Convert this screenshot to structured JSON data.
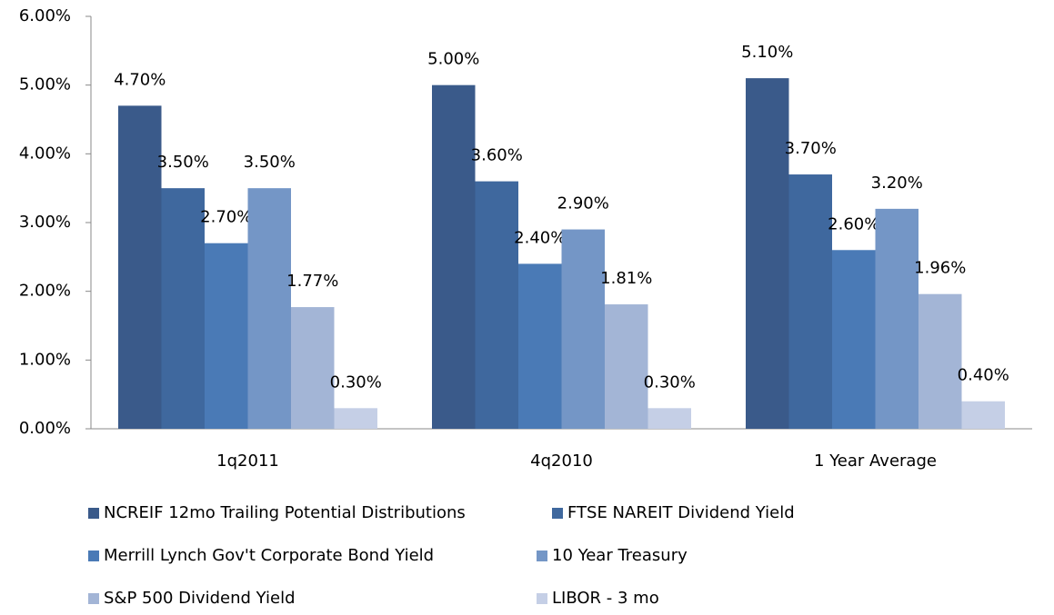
{
  "chart_data": {
    "type": "bar",
    "categories": [
      "1q2011",
      "4q2010",
      "1 Year Average"
    ],
    "series": [
      {
        "name": "NCREIF 12mo Trailing Potential Distributions",
        "color": "#3a5a8a",
        "values": [
          4.7,
          5.0,
          5.1
        ],
        "value_labels": [
          "4.70%",
          "5.00%",
          "5.10%"
        ]
      },
      {
        "name": "FTSE NAREIT Dividend Yield",
        "color": "#3f689e",
        "values": [
          3.5,
          3.6,
          3.7
        ],
        "value_labels": [
          "3.50%",
          "3.60%",
          "3.70%"
        ]
      },
      {
        "name": "Merrill Lynch Gov't Corporate Bond Yield",
        "color": "#4a7ab6",
        "values": [
          2.7,
          2.4,
          2.6
        ],
        "value_labels": [
          "2.70%",
          "2.40%",
          "2.60%"
        ]
      },
      {
        "name": "10 Year Treasury",
        "color": "#7496c6",
        "values": [
          3.5,
          2.9,
          3.2
        ],
        "value_labels": [
          "3.50%",
          "2.90%",
          "3.20%"
        ]
      },
      {
        "name": "S&P 500 Dividend Yield",
        "color": "#a3b5d6",
        "values": [
          1.77,
          1.81,
          1.96
        ],
        "value_labels": [
          "1.77%",
          "1.81%",
          "1.96%"
        ]
      },
      {
        "name": "LIBOR - 3 mo",
        "color": "#c5cfe6",
        "values": [
          0.3,
          0.3,
          0.4
        ],
        "value_labels": [
          "0.30%",
          "0.30%",
          "0.40%"
        ]
      }
    ],
    "ylim": [
      0,
      6
    ],
    "yticks": [
      {
        "value": 0,
        "label": "0.00%"
      },
      {
        "value": 1,
        "label": "1.00%"
      },
      {
        "value": 2,
        "label": "2.00%"
      },
      {
        "value": 3,
        "label": "3.00%"
      },
      {
        "value": 4,
        "label": "4.00%"
      },
      {
        "value": 5,
        "label": "5.00%"
      },
      {
        "value": 6,
        "label": "6.00%"
      }
    ],
    "grid": false,
    "legend": "bottom"
  }
}
